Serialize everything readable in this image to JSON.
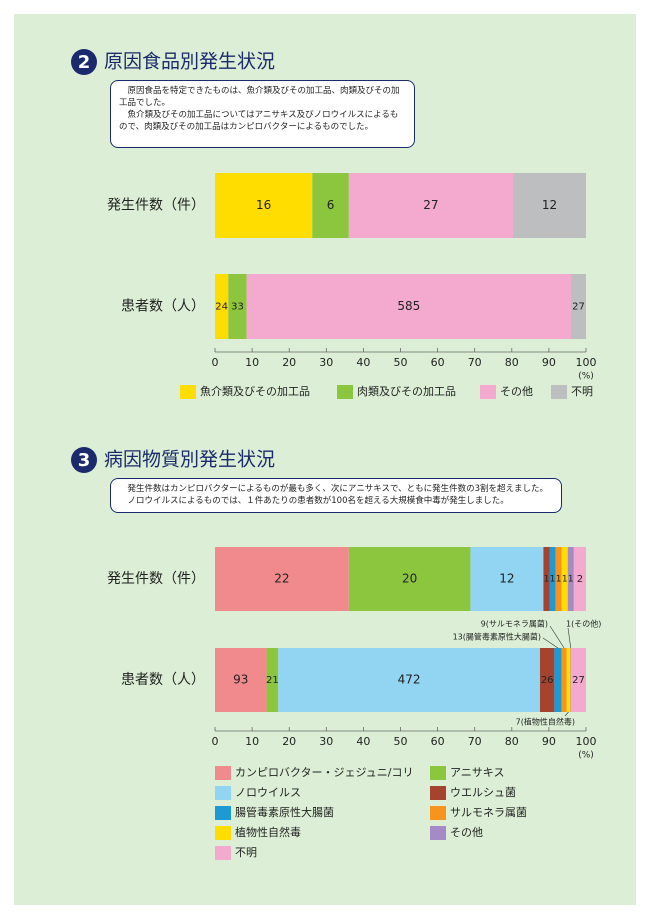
{
  "chart_data": [
    {
      "type": "bar",
      "stacked": "percent",
      "number": 2,
      "title": "原因食品別発生状況",
      "description": [
        "原因食品を特定できたものは、魚介類及びその加工品、肉類及びその加工品でした。",
        "魚介類及びその加工品についてはアニサキス及びノロウイルスによるもので、肉類及びその加工品はカンピロバクターによるものでした。"
      ],
      "categories": [
        "発生件数（件）",
        "患者数（人）"
      ],
      "series": [
        {
          "name": "魚介類及びその加工品",
          "color": "#ffdd00",
          "values": [
            16,
            24
          ]
        },
        {
          "name": "肉類及びその加工品",
          "color": "#8cc63f",
          "values": [
            6,
            33
          ]
        },
        {
          "name": "その他",
          "color": "#f4a9cf",
          "values": [
            27,
            585
          ]
        },
        {
          "name": "不明",
          "color": "#bcbec0",
          "values": [
            12,
            27
          ]
        }
      ],
      "xlim": [
        0,
        100
      ],
      "xticks": [
        0,
        10,
        20,
        30,
        40,
        50,
        60,
        70,
        80,
        90,
        100
      ],
      "x_label": "(%)"
    },
    {
      "type": "bar",
      "stacked": "percent",
      "number": 3,
      "title": "病因物質別発生状況",
      "description": [
        "発生件数はカンピロバクターによるものが最も多く、次にアニサキスで、ともに発生件数の3割を超えました。",
        "ノロウイルスによるものでは、１件あたりの患者数が100名を超える大規模食中毒が発生しました。"
      ],
      "categories": [
        "発生件数（件）",
        "患者数（人）"
      ],
      "series": [
        {
          "name": "カンピロバクター・ジェジュニ/コリ",
          "color": "#f08a8c",
          "values": [
            22,
            93
          ]
        },
        {
          "name": "アニサキス",
          "color": "#8cc63f",
          "values": [
            20,
            21
          ]
        },
        {
          "name": "ノロウイルス",
          "color": "#92d5f3",
          "values": [
            12,
            472
          ]
        },
        {
          "name": "ウエルシュ菌",
          "color": "#a5432f",
          "values": [
            1,
            26
          ]
        },
        {
          "name": "腸管毒素原性大腸菌",
          "color": "#1d9ad6",
          "values": [
            1,
            13
          ],
          "value_labels": [
            "1",
            "13(腸管毒素原性大腸菌)"
          ]
        },
        {
          "name": "サルモネラ属菌",
          "color": "#f7941d",
          "values": [
            1,
            9
          ],
          "value_labels": [
            "1",
            "9(サルモネラ属菌)"
          ]
        },
        {
          "name": "植物性自然毒",
          "color": "#ffdd00",
          "values": [
            1,
            7
          ],
          "value_labels": [
            "1",
            "7(植物性自然毒)"
          ]
        },
        {
          "name": "その他",
          "color": "#a48bc6",
          "values": [
            1,
            1
          ],
          "value_labels": [
            "1",
            "1(その他)"
          ]
        },
        {
          "name": "不明",
          "color": "#f4a9cf",
          "values": [
            2,
            27
          ]
        }
      ],
      "xlim": [
        0,
        100
      ],
      "xticks": [
        0,
        10,
        20,
        30,
        40,
        50,
        60,
        70,
        80,
        90,
        100
      ],
      "x_label": "(%)"
    }
  ]
}
